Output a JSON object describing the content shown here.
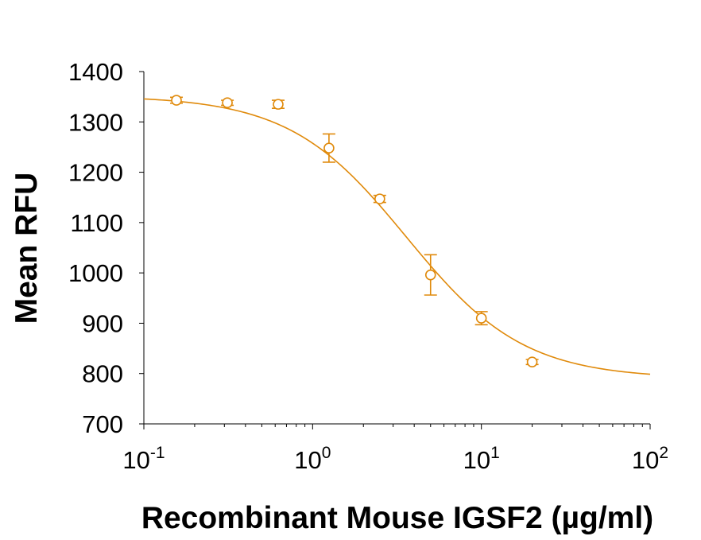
{
  "chart_data": {
    "type": "scatter",
    "title": "",
    "xlabel": "Recombinant Mouse IGSF2 (µg/ml)",
    "ylabel": "Mean RFU",
    "x_scale": "log",
    "xlim": [
      0.1,
      100
    ],
    "ylim": [
      700,
      1400
    ],
    "y_ticks": [
      700,
      800,
      900,
      1000,
      1100,
      1200,
      1300,
      1400
    ],
    "x_tick_labels": [
      {
        "value": 0.1,
        "base": "10",
        "exp": "-1"
      },
      {
        "value": 1,
        "base": "10",
        "exp": "0"
      },
      {
        "value": 10,
        "base": "10",
        "exp": "1"
      },
      {
        "value": 100,
        "base": "10",
        "exp": "2"
      }
    ],
    "grid": false,
    "color": "#E08A0B",
    "points": [
      {
        "x": 0.156,
        "y": 1343,
        "err": 6
      },
      {
        "x": 0.3125,
        "y": 1338,
        "err": 5
      },
      {
        "x": 0.625,
        "y": 1335,
        "err": 8
      },
      {
        "x": 1.25,
        "y": 1248,
        "err": 28
      },
      {
        "x": 2.5,
        "y": 1147,
        "err": 7
      },
      {
        "x": 5,
        "y": 996,
        "err": 40
      },
      {
        "x": 10,
        "y": 910,
        "err": 13
      },
      {
        "x": 20,
        "y": 823,
        "err": 5
      }
    ],
    "fit_curve": {
      "type": "4PL",
      "top": 1352,
      "bottom": 790,
      "ec50": 3.6,
      "hill": 1.25
    }
  }
}
